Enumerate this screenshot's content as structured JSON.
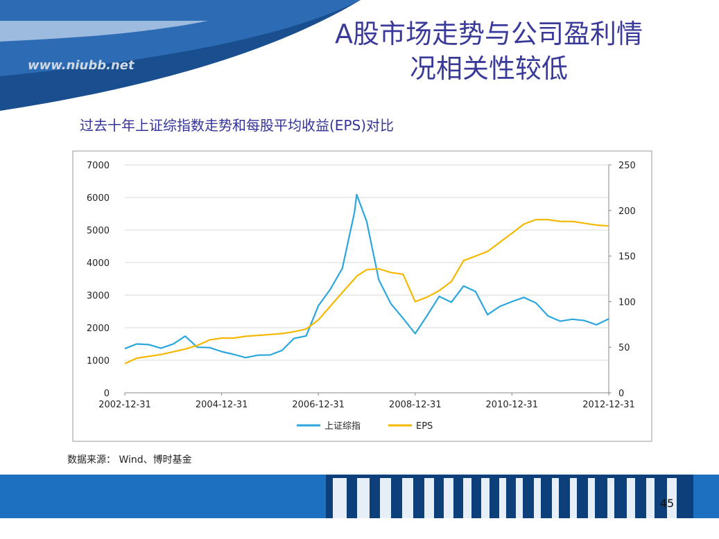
{
  "slide": {
    "title": [
      "A股市场走势与公司盈利情",
      "况相关性较低"
    ],
    "watermark": "www.niubb.net",
    "source": "数据来源： Wind、博时基金",
    "page_number": "45"
  },
  "chart_data": {
    "type": "line",
    "title": "过去十年上证综指数走势和每股平均收益(EPS)对比",
    "x": [
      "2002-12-31",
      "2003-03-31",
      "2003-06-30",
      "2003-09-30",
      "2003-12-31",
      "2004-03-31",
      "2004-06-30",
      "2004-09-30",
      "2004-12-31",
      "2005-03-31",
      "2005-06-30",
      "2005-09-30",
      "2005-12-31",
      "2006-03-31",
      "2006-06-30",
      "2006-09-30",
      "2006-12-31",
      "2007-03-31",
      "2007-06-30",
      "2007-09-30",
      "2007-10-16",
      "2007-12-31",
      "2008-03-31",
      "2008-06-30",
      "2008-09-30",
      "2008-12-31",
      "2009-03-31",
      "2009-06-30",
      "2009-09-30",
      "2009-12-31",
      "2010-03-31",
      "2010-06-30",
      "2010-09-30",
      "2010-12-31",
      "2011-03-31",
      "2011-06-30",
      "2011-09-30",
      "2011-12-31",
      "2012-03-31",
      "2012-06-30",
      "2012-09-30",
      "2012-12-31"
    ],
    "series": [
      {
        "name": "上证综指",
        "color": "#2aa6de",
        "values": [
          1357,
          1500,
          1480,
          1370,
          1497,
          1740,
          1400,
          1390,
          1266,
          1180,
          1080,
          1155,
          1161,
          1300,
          1670,
          1750,
          2675,
          3180,
          3820,
          5550,
          6092,
          5260,
          3470,
          2740,
          2290,
          1820,
          2370,
          2960,
          2780,
          3280,
          3110,
          2400,
          2650,
          2800,
          2930,
          2760,
          2360,
          2200,
          2260,
          2220,
          2090,
          2270
        ]
      },
      {
        "name": "EPS",
        "color": "#f5b800",
        "axis": "y2",
        "values": [
          32,
          38,
          40,
          42,
          45,
          48,
          52,
          58,
          60,
          60,
          62,
          63,
          64,
          65,
          67,
          70,
          80,
          95,
          110,
          125,
          128,
          135,
          136,
          132,
          130,
          100,
          105,
          112,
          122,
          145,
          150,
          155,
          165,
          175,
          185,
          190,
          190,
          188,
          188,
          186,
          184,
          183
        ]
      }
    ],
    "xlim": [
      "2002-12-31",
      "2012-12-31"
    ],
    "xticks": [
      "2002-12-31",
      "2004-12-31",
      "2006-12-31",
      "2008-12-31",
      "2010-12-31",
      "2012-12-31"
    ],
    "ylim": [
      0,
      7000
    ],
    "yticks": [
      0,
      1000,
      2000,
      3000,
      4000,
      5000,
      6000,
      7000
    ],
    "y2lim": [
      0,
      250
    ],
    "y2ticks": [
      0,
      50,
      100,
      150,
      200,
      250
    ],
    "legend": "bottom"
  }
}
